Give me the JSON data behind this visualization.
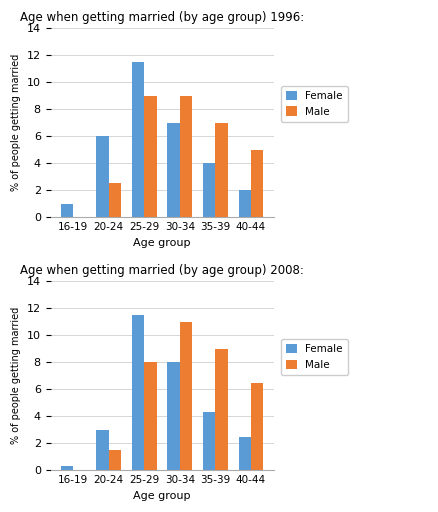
{
  "categories": [
    "16-19",
    "20-24",
    "25-29",
    "30-34",
    "35-39",
    "40-44"
  ],
  "chart1": {
    "title": "Age when getting married (by age group) 1996:",
    "female": [
      1.0,
      6.0,
      11.5,
      7.0,
      4.0,
      2.0
    ],
    "male": [
      0.0,
      2.5,
      9.0,
      9.0,
      7.0,
      5.0
    ]
  },
  "chart2": {
    "title": "Age when getting married (by age group) 2008:",
    "female": [
      0.3,
      3.0,
      11.5,
      8.0,
      4.3,
      2.5
    ],
    "male": [
      0.0,
      1.5,
      8.0,
      11.0,
      9.0,
      6.5
    ]
  },
  "female_color": "#5B9BD5",
  "male_color": "#ED7D31",
  "ylabel": "% of people getting married",
  "xlabel": "Age group",
  "ylim": [
    0,
    14
  ],
  "yticks": [
    0,
    2,
    4,
    6,
    8,
    10,
    12,
    14
  ],
  "legend_labels": [
    "Female",
    "Male"
  ],
  "background_color": "#ffffff"
}
